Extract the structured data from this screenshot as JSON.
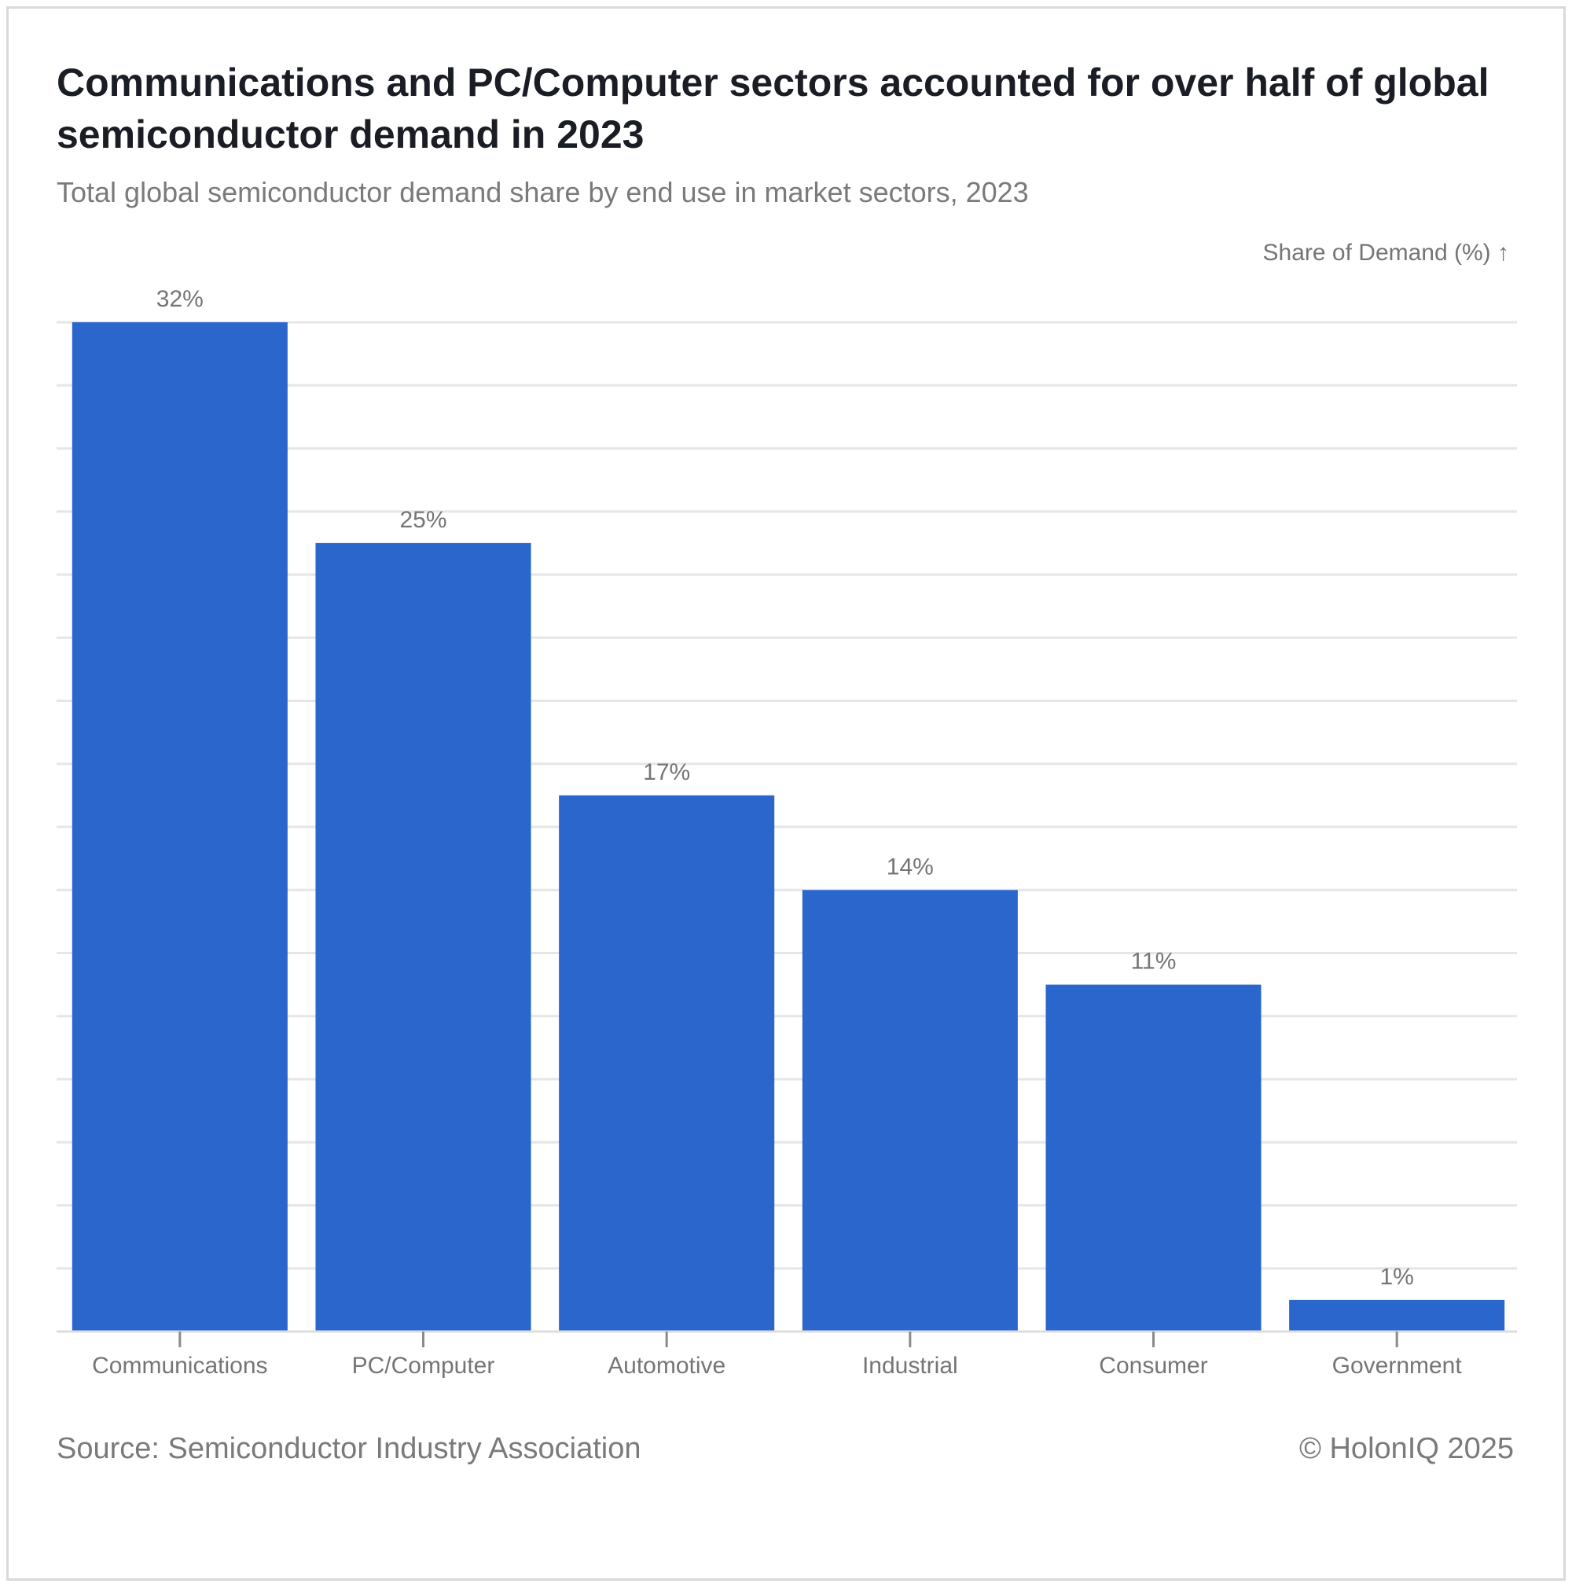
{
  "header": {
    "title": "Communications and PC/Computer sectors accounted for over half of global semiconductor demand in 2023",
    "subtitle": "Total global semiconductor demand share by end use in market sectors, 2023"
  },
  "footer": {
    "source": "Source: Semiconductor Industry Association",
    "copyright": "© HolonIQ 2025"
  },
  "chart_data": {
    "type": "bar",
    "title": "Communications and PC/Computer sectors accounted for over half of global semiconductor demand in 2023",
    "subtitle": "Total global semiconductor demand share by end use in market sectors, 2023",
    "ylabel": "Share of Demand (%) ↑",
    "categories": [
      "Communications",
      "PC/Computer",
      "Automotive",
      "Industrial",
      "Consumer",
      "Government"
    ],
    "values": [
      32,
      25,
      17,
      14,
      11,
      1
    ],
    "data_labels": [
      "32%",
      "25%",
      "17%",
      "14%",
      "11%",
      "1%"
    ],
    "ylim": [
      0,
      32
    ],
    "grid": true,
    "bar_color": "#2b66cc",
    "grid_color": "#e6e6e6"
  }
}
